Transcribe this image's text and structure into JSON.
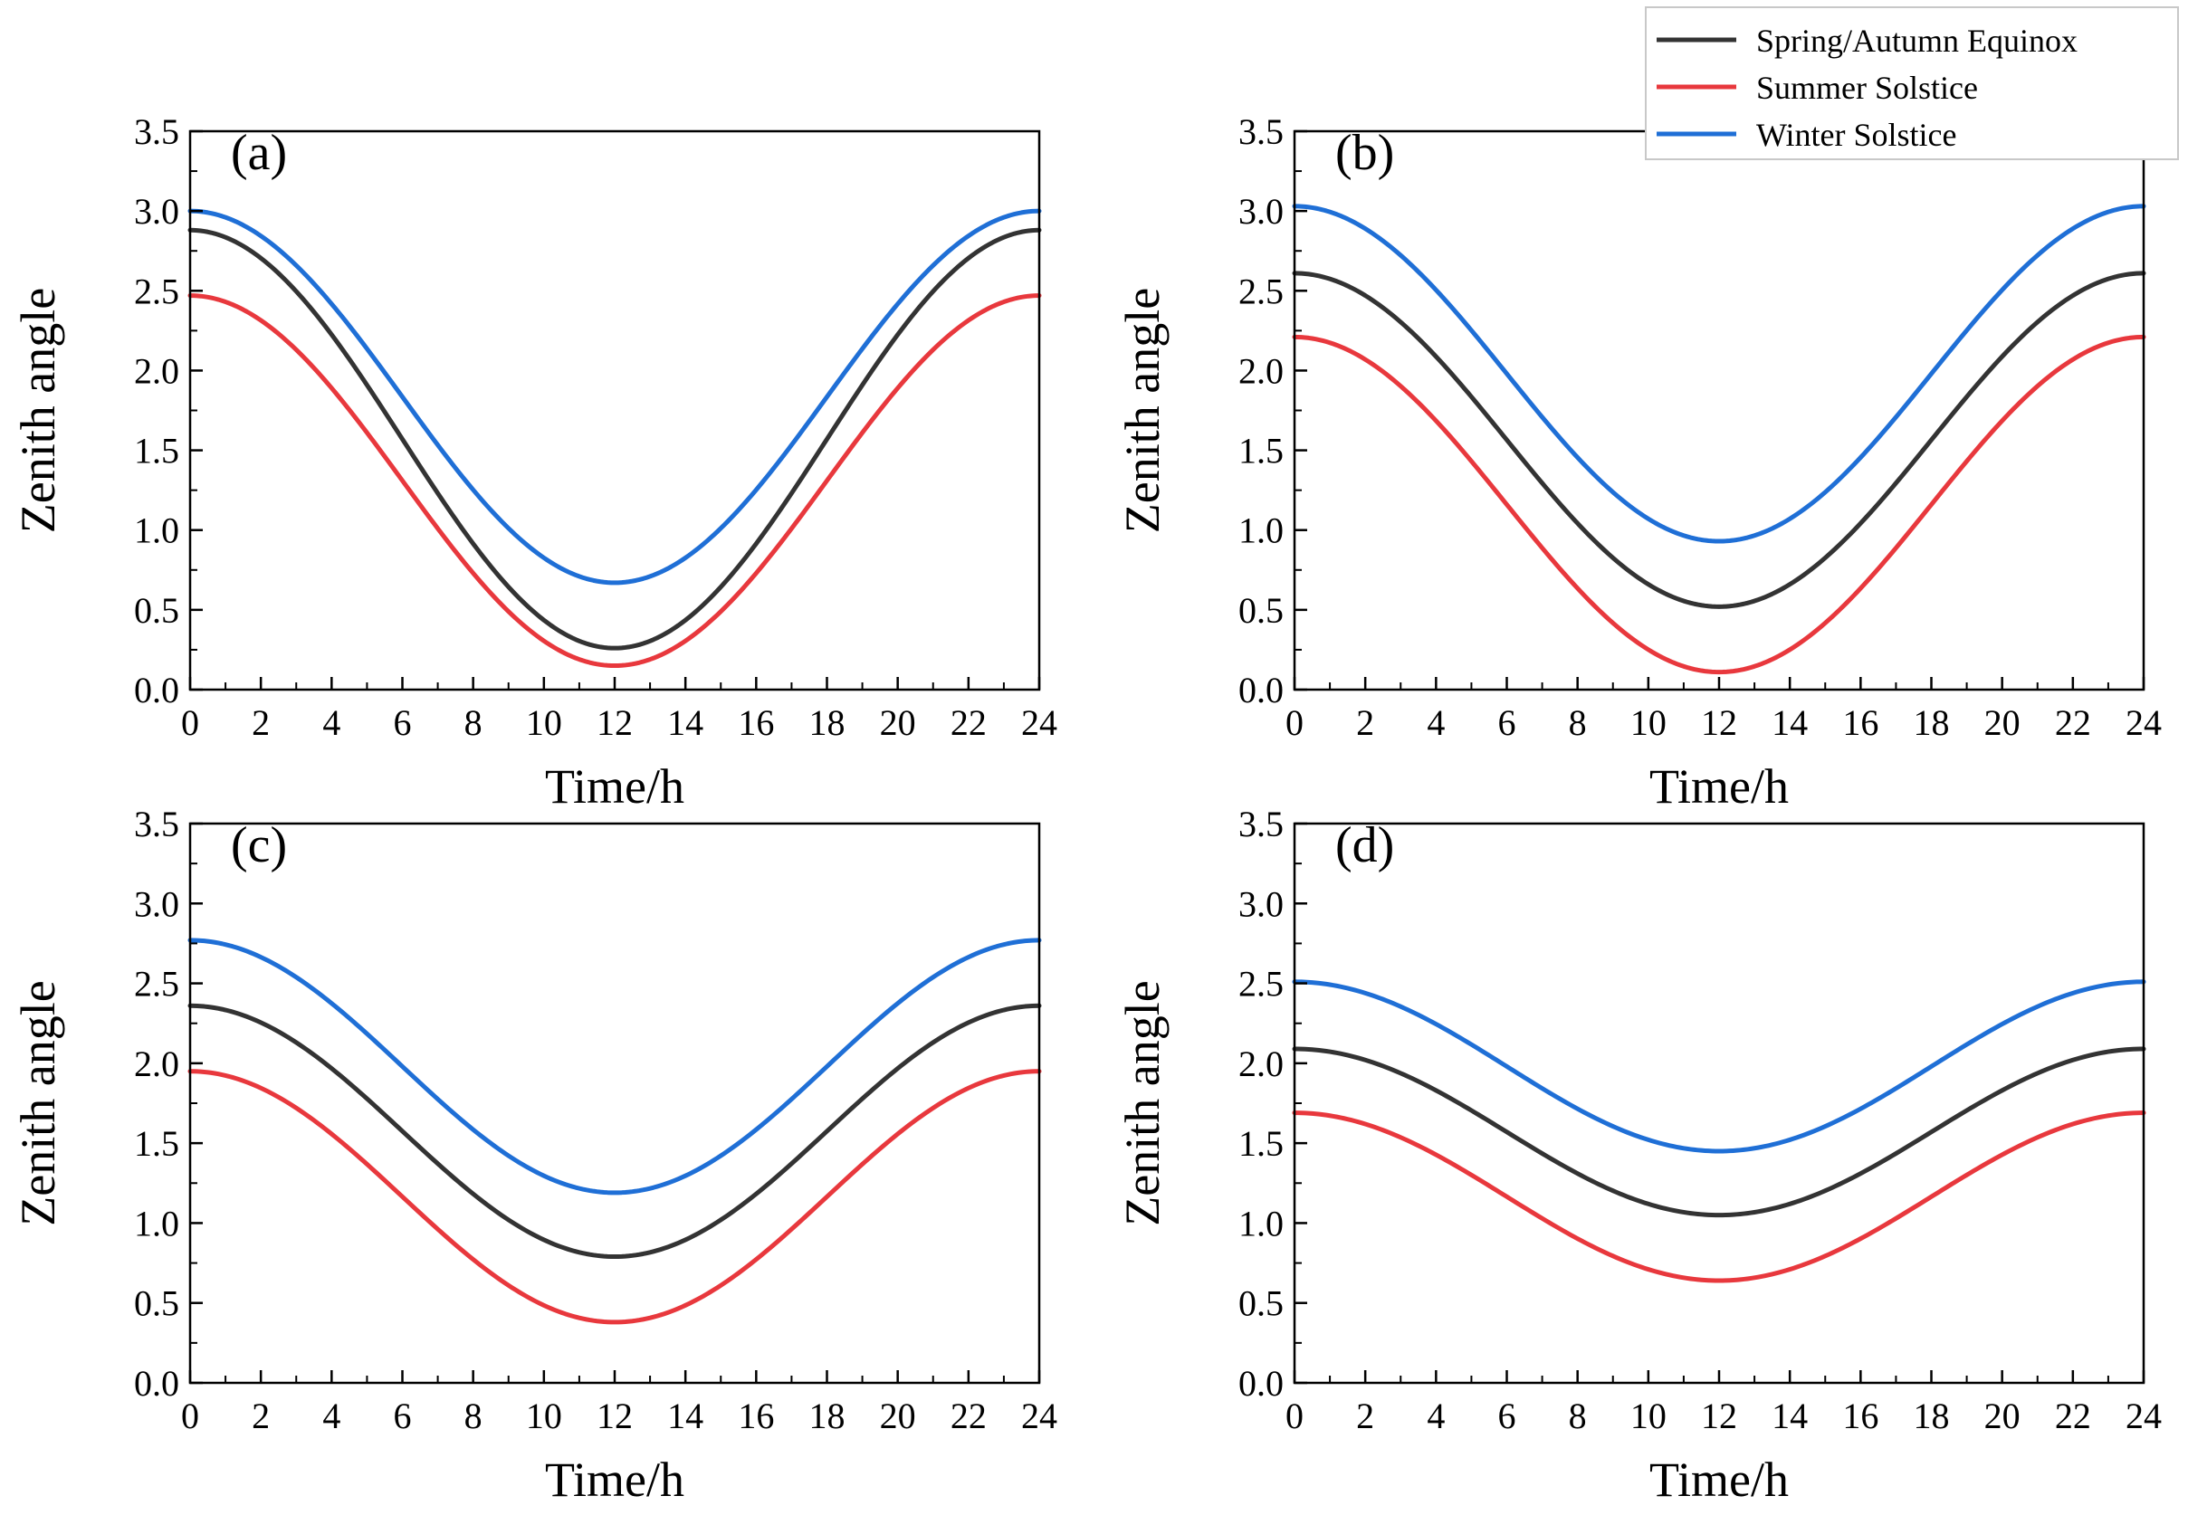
{
  "legend": {
    "entries": [
      {
        "name": "Spring/Autumn Equinox",
        "color": "#333333"
      },
      {
        "name": "Summer Solstice",
        "color": "#e8383d"
      },
      {
        "name": "Winter Solstice",
        "color": "#1f6fd6"
      }
    ]
  },
  "chart_data": [
    {
      "type": "line",
      "panel": "(a)",
      "xlabel": "Time/h",
      "ylabel": "Zenith angle",
      "xlim": [
        0,
        24
      ],
      "ylim": [
        0,
        3.5
      ],
      "xticks": [
        "0",
        "2",
        "4",
        "6",
        "8",
        "10",
        "12",
        "14",
        "16",
        "18",
        "20",
        "22",
        "24"
      ],
      "yticks": [
        "0.0",
        "0.5",
        "1.0",
        "1.5",
        "2.0",
        "2.5",
        "3.0",
        "3.5"
      ],
      "series": [
        {
          "name": "Spring/Autumn Equinox",
          "color": "#333333",
          "min": 0.26,
          "max": 2.88
        },
        {
          "name": "Summer Solstice",
          "color": "#e8383d",
          "min": 0.15,
          "max": 2.47
        },
        {
          "name": "Winter Solstice",
          "color": "#1f6fd6",
          "min": 0.67,
          "max": 3.0
        }
      ]
    },
    {
      "type": "line",
      "panel": "(b)",
      "xlabel": "Time/h",
      "ylabel": "Zenith angle",
      "xlim": [
        0,
        24
      ],
      "ylim": [
        0,
        3.5
      ],
      "xticks": [
        "0",
        "2",
        "4",
        "6",
        "8",
        "10",
        "12",
        "14",
        "16",
        "18",
        "20",
        "22",
        "24"
      ],
      "yticks": [
        "0.0",
        "0.5",
        "1.0",
        "1.5",
        "2.0",
        "2.5",
        "3.0",
        "3.5"
      ],
      "series": [
        {
          "name": "Spring/Autumn Equinox",
          "color": "#333333",
          "min": 0.52,
          "max": 2.61
        },
        {
          "name": "Summer Solstice",
          "color": "#e8383d",
          "min": 0.11,
          "max": 2.21
        },
        {
          "name": "Winter Solstice",
          "color": "#1f6fd6",
          "min": 0.93,
          "max": 3.03
        }
      ]
    },
    {
      "type": "line",
      "panel": "(c)",
      "xlabel": "Time/h",
      "ylabel": "Zenith angle",
      "xlim": [
        0,
        24
      ],
      "ylim": [
        0,
        3.5
      ],
      "xticks": [
        "0",
        "2",
        "4",
        "6",
        "8",
        "10",
        "12",
        "14",
        "16",
        "18",
        "20",
        "22",
        "24"
      ],
      "yticks": [
        "0.0",
        "0.5",
        "1.0",
        "1.5",
        "2.0",
        "2.5",
        "3.0",
        "3.5"
      ],
      "series": [
        {
          "name": "Spring/Autumn Equinox",
          "color": "#333333",
          "min": 0.79,
          "max": 2.36
        },
        {
          "name": "Summer Solstice",
          "color": "#e8383d",
          "min": 0.38,
          "max": 1.95
        },
        {
          "name": "Winter Solstice",
          "color": "#1f6fd6",
          "min": 1.19,
          "max": 2.77
        }
      ]
    },
    {
      "type": "line",
      "panel": "(d)",
      "xlabel": "Time/h",
      "ylabel": "Zenith angle",
      "xlim": [
        0,
        24
      ],
      "ylim": [
        0,
        3.5
      ],
      "xticks": [
        "0",
        "2",
        "4",
        "6",
        "8",
        "10",
        "12",
        "14",
        "16",
        "18",
        "20",
        "22",
        "24"
      ],
      "yticks": [
        "0.0",
        "0.5",
        "1.0",
        "1.5",
        "2.0",
        "2.5",
        "3.0",
        "3.5"
      ],
      "series": [
        {
          "name": "Spring/Autumn Equinox",
          "color": "#333333",
          "min": 1.05,
          "max": 2.09
        },
        {
          "name": "Summer Solstice",
          "color": "#e8383d",
          "min": 0.64,
          "max": 1.69
        },
        {
          "name": "Winter Solstice",
          "color": "#1f6fd6",
          "min": 1.45,
          "max": 2.51
        }
      ]
    }
  ]
}
